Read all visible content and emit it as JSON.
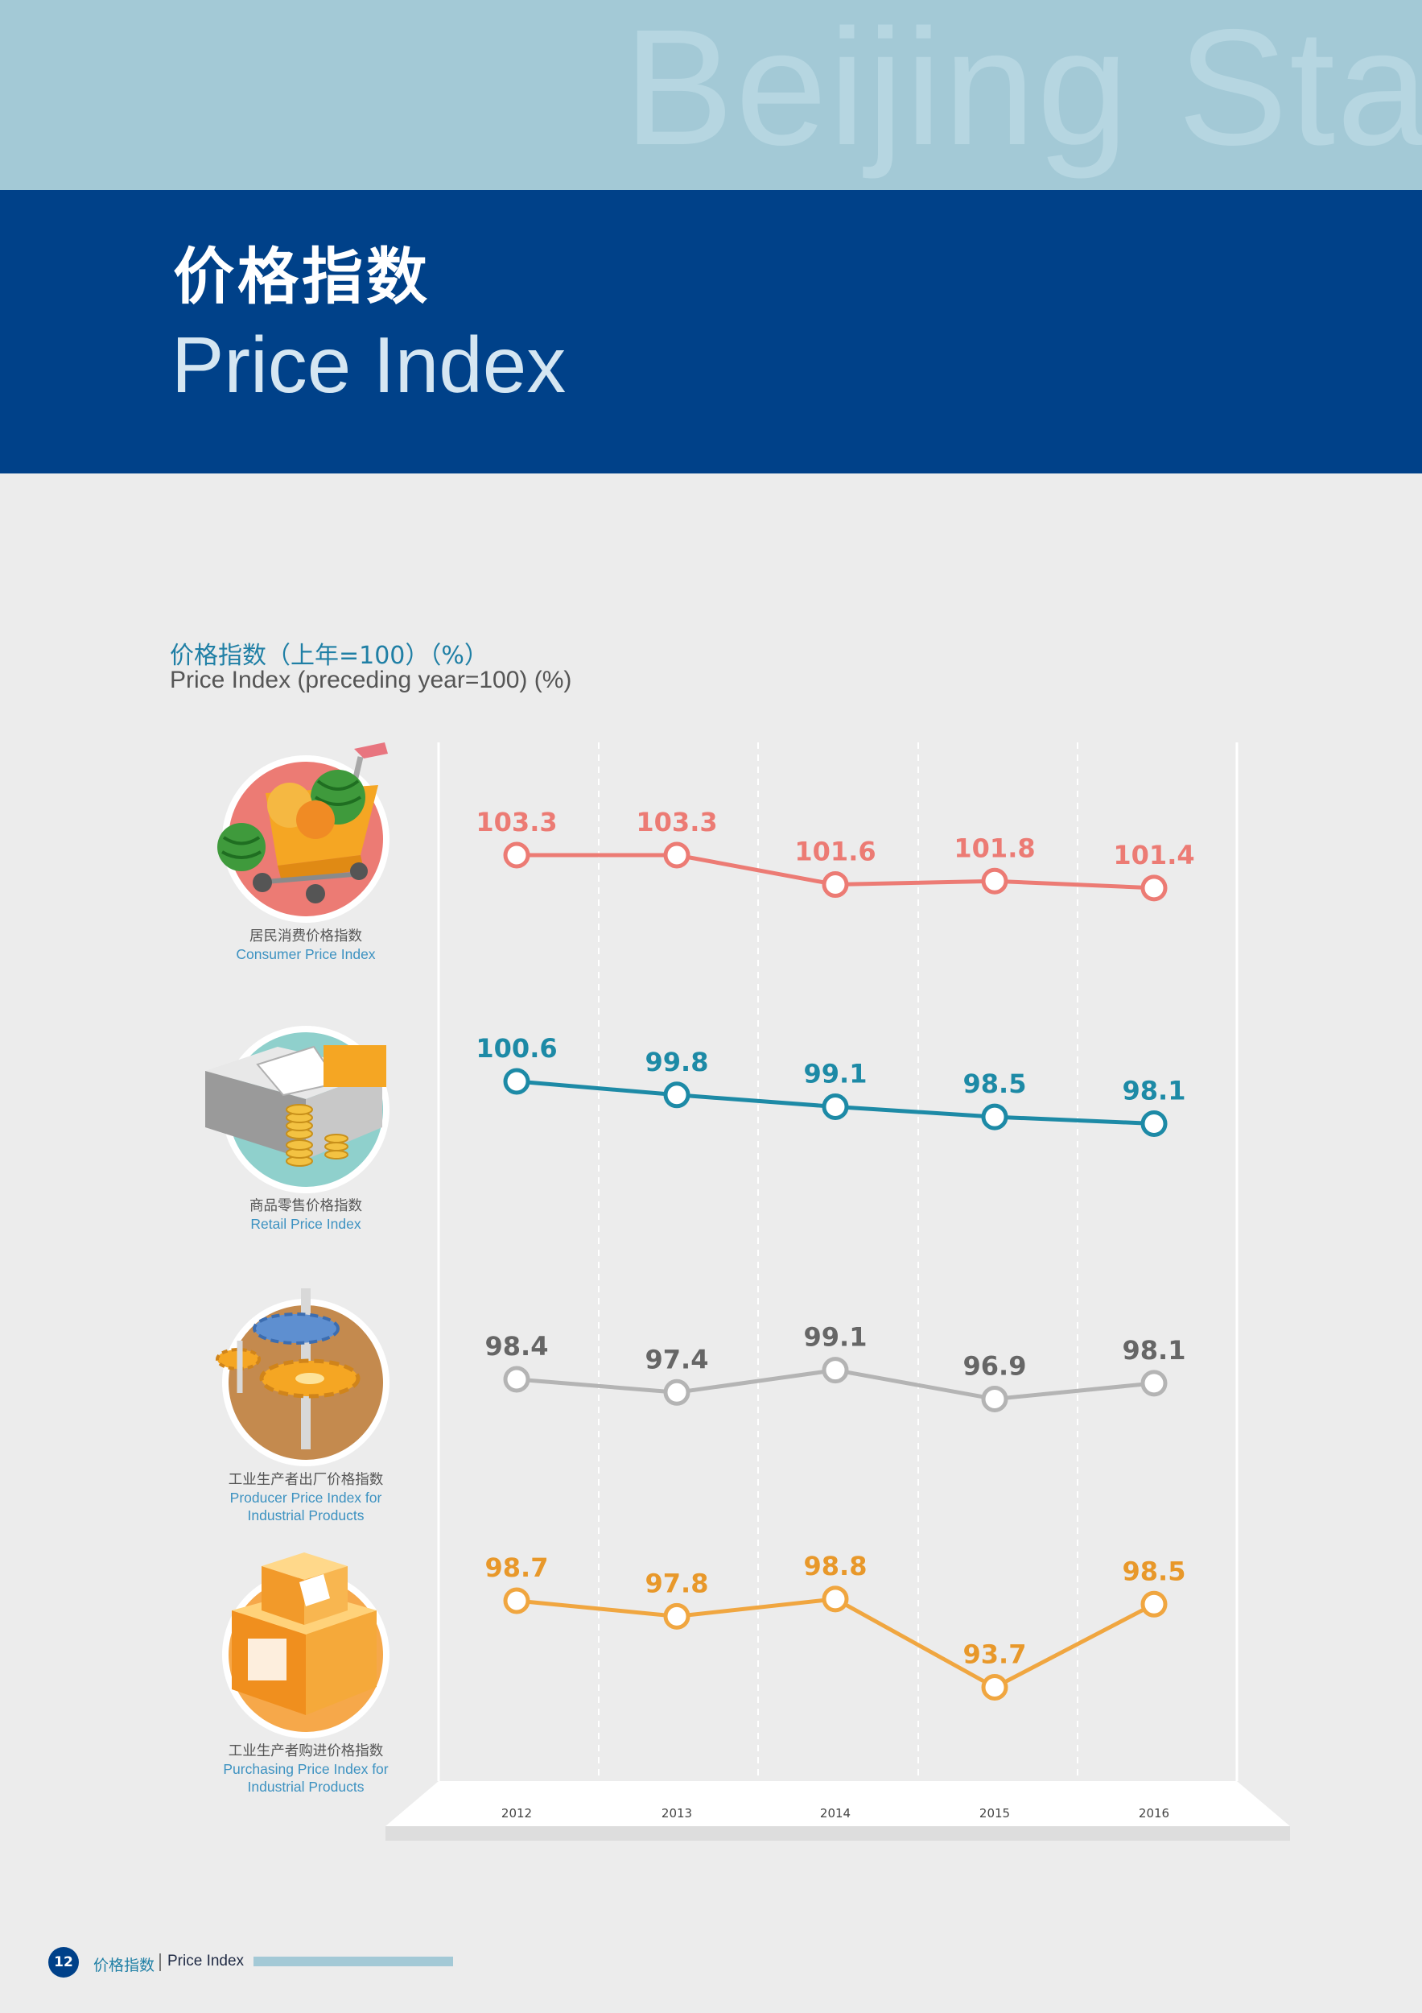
{
  "header": {
    "watermark": "Beijing Sta",
    "title_zh": "价格指数",
    "title_en": "Price Index"
  },
  "chart_data": {
    "type": "line",
    "title_zh": "价格指数（上年=100）（%）",
    "title_en": "Price Index (preceding year=100) (%)",
    "categories": [
      "2012",
      "2013",
      "2014",
      "2015",
      "2016"
    ],
    "series": [
      {
        "name_zh": "居民消费价格指数",
        "name_en": [
          "Consumer Price Index"
        ],
        "icon": "shopping-cart-icon",
        "color": "#ec7b74",
        "values": [
          103.3,
          103.3,
          101.6,
          101.8,
          101.4
        ]
      },
      {
        "name_zh": "商品零售价格指数",
        "name_en": [
          "Retail Price Index"
        ],
        "icon": "cash-register-icon",
        "color": "#1d8aa6",
        "values": [
          100.6,
          99.8,
          99.1,
          98.5,
          98.1
        ]
      },
      {
        "name_zh": "工业生产者出厂价格指数",
        "name_en": [
          "Producer Price Index for",
          "Industrial Products"
        ],
        "icon": "gears-icon",
        "color": "#b4b4b4",
        "label_color": "#666666",
        "values": [
          98.4,
          97.4,
          99.1,
          96.9,
          98.1
        ]
      },
      {
        "name_zh": "工业生产者购进价格指数",
        "name_en": [
          "Purchasing Price Index for",
          "Industrial Products"
        ],
        "icon": "boxes-icon",
        "color": "#f0a640",
        "label_color": "#e8982a",
        "values": [
          98.7,
          97.8,
          98.8,
          93.7,
          98.5
        ]
      }
    ]
  },
  "footer": {
    "page_number": "12",
    "label_zh": "价格指数",
    "label_en": "Price Index"
  }
}
